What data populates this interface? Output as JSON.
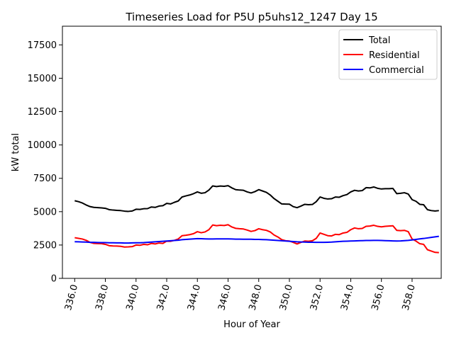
{
  "chart_data": {
    "type": "line",
    "title": "Timeseries Load for P5U p5uhs12_1247  Day 15",
    "xlabel": "Hour of Year",
    "ylabel": "kW total",
    "xlim": [
      335.2,
      359.9
    ],
    "ylim": [
      0,
      18900
    ],
    "x_ticks": [
      336,
      338,
      340,
      342,
      344,
      346,
      348,
      350,
      352,
      354,
      356,
      358
    ],
    "x_tick_labels": [
      "336.0",
      "338.0",
      "340.0",
      "342.0",
      "344.0",
      "346.0",
      "348.0",
      "350.0",
      "352.0",
      "354.0",
      "356.0",
      "358.0"
    ],
    "y_ticks": [
      0,
      2500,
      5000,
      7500,
      10000,
      12500,
      15000,
      17500
    ],
    "y_tick_labels": [
      "0",
      "2500",
      "5000",
      "7500",
      "10000",
      "12500",
      "15000",
      "17500"
    ],
    "grid": false,
    "legend_position": "top-right",
    "x": [
      336.0,
      336.25,
      336.5,
      336.75,
      337.0,
      337.25,
      337.5,
      337.75,
      338.0,
      338.25,
      338.5,
      338.75,
      339.0,
      339.25,
      339.5,
      339.75,
      340.0,
      340.25,
      340.5,
      340.75,
      341.0,
      341.25,
      341.5,
      341.75,
      342.0,
      342.25,
      342.5,
      342.75,
      343.0,
      343.25,
      343.5,
      343.75,
      344.0,
      344.25,
      344.5,
      344.75,
      345.0,
      345.25,
      345.5,
      345.75,
      346.0,
      346.25,
      346.5,
      346.75,
      347.0,
      347.25,
      347.5,
      347.75,
      348.0,
      348.25,
      348.5,
      348.75,
      349.0,
      349.25,
      349.5,
      349.75,
      350.0,
      350.25,
      350.5,
      350.75,
      351.0,
      351.25,
      351.5,
      351.75,
      352.0,
      352.25,
      352.5,
      352.75,
      353.0,
      353.25,
      353.5,
      353.75,
      354.0,
      354.25,
      354.5,
      354.75,
      355.0,
      355.25,
      355.5,
      355.75,
      356.0,
      356.25,
      356.5,
      356.75,
      357.0,
      357.25,
      357.5,
      357.75,
      358.0,
      358.25,
      358.5,
      358.75,
      359.0,
      359.25,
      359.5,
      359.75
    ],
    "series": [
      {
        "name": "Total",
        "color": "#000000",
        "values": [
          5820,
          5750,
          5650,
          5500,
          5380,
          5320,
          5300,
          5280,
          5250,
          5150,
          5120,
          5100,
          5080,
          5040,
          5020,
          5050,
          5180,
          5170,
          5220,
          5230,
          5350,
          5320,
          5420,
          5450,
          5620,
          5580,
          5700,
          5800,
          6100,
          6180,
          6250,
          6350,
          6480,
          6380,
          6420,
          6620,
          6930,
          6880,
          6920,
          6900,
          6950,
          6780,
          6650,
          6620,
          6600,
          6480,
          6400,
          6500,
          6650,
          6550,
          6450,
          6250,
          5980,
          5780,
          5580,
          5570,
          5560,
          5380,
          5300,
          5420,
          5550,
          5520,
          5540,
          5750,
          6100,
          6000,
          5950,
          5970,
          6100,
          6080,
          6200,
          6280,
          6480,
          6600,
          6550,
          6580,
          6800,
          6780,
          6850,
          6750,
          6700,
          6720,
          6720,
          6740,
          6350,
          6380,
          6420,
          6320,
          5900,
          5780,
          5550,
          5520,
          5150,
          5080,
          5050,
          5080
        ]
      },
      {
        "name": "Residential",
        "color": "#ff0000",
        "values": [
          3050,
          3000,
          2950,
          2850,
          2700,
          2620,
          2610,
          2600,
          2550,
          2450,
          2430,
          2420,
          2400,
          2350,
          2360,
          2380,
          2500,
          2480,
          2550,
          2520,
          2620,
          2580,
          2650,
          2620,
          2790,
          2780,
          2850,
          2950,
          3200,
          3230,
          3280,
          3350,
          3500,
          3420,
          3480,
          3650,
          4000,
          3950,
          3980,
          3960,
          4020,
          3850,
          3750,
          3720,
          3700,
          3620,
          3520,
          3580,
          3720,
          3650,
          3600,
          3480,
          3250,
          3100,
          2900,
          2820,
          2800,
          2700,
          2580,
          2700,
          2800,
          2780,
          2820,
          3000,
          3400,
          3300,
          3200,
          3180,
          3300,
          3280,
          3400,
          3450,
          3650,
          3780,
          3720,
          3740,
          3900,
          3920,
          3980,
          3900,
          3860,
          3900,
          3920,
          3940,
          3600,
          3580,
          3600,
          3500,
          2950,
          2800,
          2600,
          2550,
          2150,
          2050,
          1950,
          1930
        ]
      },
      {
        "name": "Commercial",
        "color": "#0000ff",
        "values": [
          2750,
          2740,
          2730,
          2720,
          2700,
          2700,
          2690,
          2680,
          2680,
          2670,
          2670,
          2660,
          2660,
          2650,
          2650,
          2660,
          2670,
          2670,
          2680,
          2700,
          2720,
          2740,
          2760,
          2780,
          2800,
          2820,
          2840,
          2860,
          2900,
          2920,
          2940,
          2960,
          2980,
          2970,
          2960,
          2950,
          2950,
          2960,
          2960,
          2960,
          2960,
          2950,
          2940,
          2940,
          2930,
          2930,
          2930,
          2920,
          2920,
          2910,
          2900,
          2880,
          2860,
          2840,
          2820,
          2800,
          2780,
          2760,
          2740,
          2730,
          2720,
          2710,
          2710,
          2700,
          2700,
          2700,
          2710,
          2720,
          2740,
          2760,
          2780,
          2790,
          2800,
          2810,
          2820,
          2830,
          2840,
          2840,
          2850,
          2850,
          2840,
          2830,
          2820,
          2810,
          2800,
          2810,
          2830,
          2850,
          2880,
          2920,
          2960,
          2990,
          3030,
          3070,
          3110,
          3150
        ]
      }
    ]
  }
}
